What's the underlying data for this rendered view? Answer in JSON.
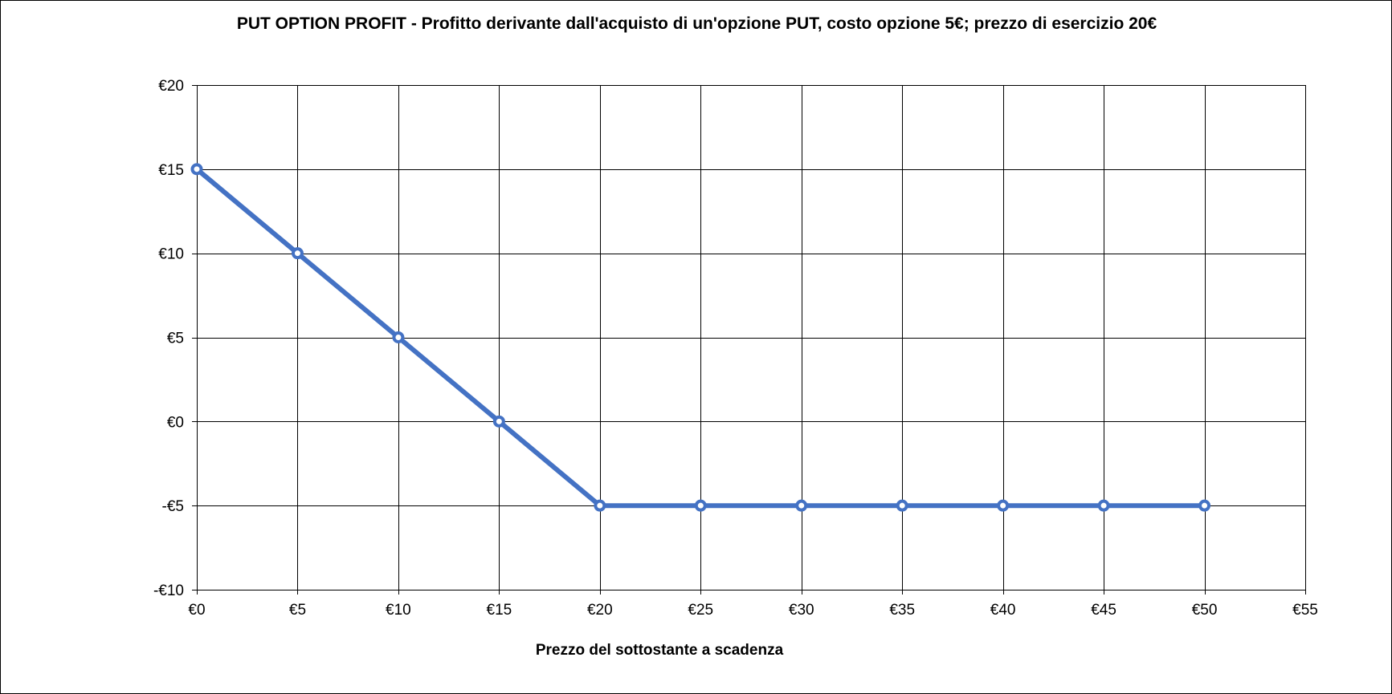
{
  "chart_data": {
    "type": "line",
    "title": "PUT OPTION PROFIT - Profitto derivante dall'acquisto di un'opzione PUT, costo opzione 5€; prezzo di esercizio 20€",
    "xlabel": "Prezzo del sottostante a scadenza",
    "ylabel": "",
    "xlim": [
      0,
      55
    ],
    "ylim": [
      -10,
      20
    ],
    "x_ticks": [
      0,
      5,
      10,
      15,
      20,
      25,
      30,
      35,
      40,
      45,
      50,
      55
    ],
    "y_ticks": [
      -10,
      -5,
      0,
      5,
      10,
      15,
      20
    ],
    "x_tick_labels": [
      "€0",
      "€5",
      "€10",
      "€15",
      "€20",
      "€25",
      "€30",
      "€35",
      "€40",
      "€45",
      "€50",
      "€55"
    ],
    "y_tick_labels": [
      "-€10",
      "-€5",
      "€0",
      "€5",
      "€10",
      "€15",
      "€20"
    ],
    "grid": true,
    "legend": "none",
    "series": [
      {
        "x": [
          0,
          5,
          10,
          15,
          20,
          25,
          30,
          35,
          40,
          45,
          50
        ],
        "values": [
          15,
          10,
          5,
          0,
          -5,
          -5,
          -5,
          -5,
          -5,
          -5,
          -5
        ],
        "color": "#4472C4",
        "marker": "circle"
      }
    ]
  }
}
